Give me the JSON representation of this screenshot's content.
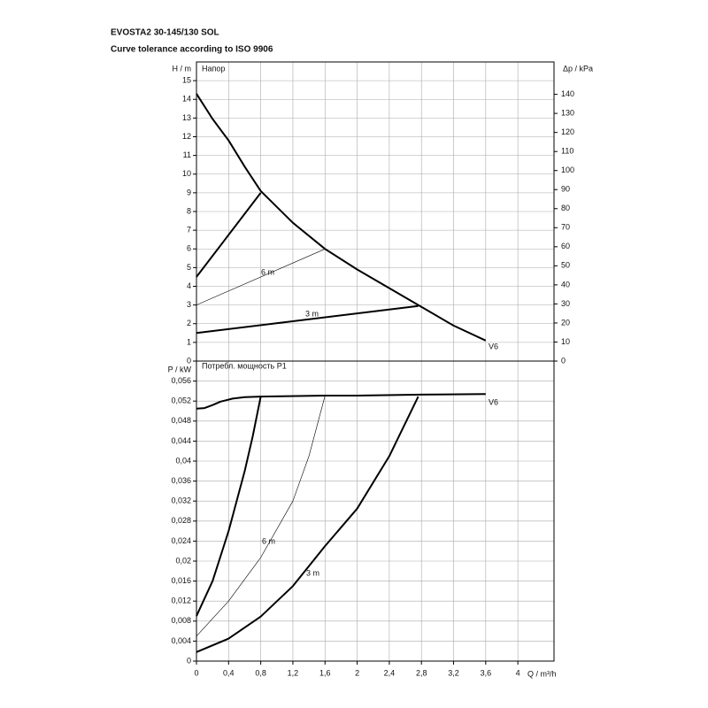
{
  "chart_data": [
    {
      "type": "line",
      "title": "EVOSTA2 30-145/130 SOL",
      "subtitle": "Curve tolerance according to ISO 9906",
      "panel_title": "Напор",
      "ylabel": "H / m",
      "y2label": "Δp / kPa",
      "xlim": [
        0,
        4.45
      ],
      "xticks": [
        0,
        0.4,
        0.8,
        1.2,
        1.6,
        2,
        2.4,
        2.8,
        3.2,
        3.6,
        4
      ],
      "ylim": [
        0,
        16
      ],
      "yticks": [
        0,
        1,
        2,
        3,
        4,
        5,
        6,
        7,
        8,
        9,
        10,
        11,
        12,
        13,
        14,
        15
      ],
      "y2lim": [
        0,
        157
      ],
      "y2ticks": [
        0,
        10,
        20,
        30,
        40,
        50,
        60,
        70,
        80,
        90,
        100,
        110,
        120,
        130,
        140
      ],
      "grid": true,
      "series": [
        {
          "name": "V6",
          "color": "#000000",
          "width": 2,
          "x": [
            0,
            0.2,
            0.4,
            0.6,
            0.8,
            1.2,
            1.6,
            2.0,
            2.4,
            2.8,
            3.2,
            3.6
          ],
          "values": [
            14.3,
            12.95,
            11.8,
            10.4,
            9.1,
            7.4,
            6.0,
            4.9,
            3.9,
            2.9,
            1.9,
            1.1
          ]
        },
        {
          "color": "#000000",
          "width": 2,
          "x": [
            0,
            0.8
          ],
          "values": [
            4.5,
            9.0
          ]
        },
        {
          "name": "6 m",
          "color": "#000000",
          "width": 0.6,
          "x": [
            0,
            1.6
          ],
          "values": [
            3.0,
            6.0
          ]
        },
        {
          "name": "3 m",
          "color": "#000000",
          "width": 2,
          "x": [
            0,
            2.76
          ],
          "values": [
            1.5,
            2.95
          ]
        }
      ]
    },
    {
      "type": "line",
      "panel_title": "Потребл. мощность P1",
      "ylabel": "P / kW",
      "xlabel": "Q / m³/h",
      "xlim": [
        0,
        4.45
      ],
      "xticks": [
        0,
        {
          "value": 0.4,
          "label": "0,4"
        },
        {
          "value": 0.8,
          "label": "0,8"
        },
        {
          "value": 1.2,
          "label": "1,2"
        },
        {
          "value": 1.6,
          "label": "1,6"
        },
        2,
        {
          "value": 2.4,
          "label": "2,4"
        },
        {
          "value": 2.8,
          "label": "2,8"
        },
        {
          "value": 3.2,
          "label": "3,2"
        },
        {
          "value": 3.6,
          "label": "3,6"
        },
        4
      ],
      "ylim": [
        0,
        0.06
      ],
      "yticks": [
        0,
        {
          "value": 0.004,
          "label": "0,004"
        },
        {
          "value": 0.008,
          "label": "0,008"
        },
        {
          "value": 0.012,
          "label": "0,012"
        },
        {
          "value": 0.016,
          "label": "0,016"
        },
        {
          "value": 0.02,
          "label": "0,02"
        },
        {
          "value": 0.024,
          "label": "0,024"
        },
        {
          "value": 0.028,
          "label": "0,028"
        },
        {
          "value": 0.032,
          "label": "0,032"
        },
        {
          "value": 0.036,
          "label": "0,036"
        },
        {
          "value": 0.04,
          "label": "0,04"
        },
        {
          "value": 0.044,
          "label": "0,044"
        },
        {
          "value": 0.048,
          "label": "0,048"
        },
        {
          "value": 0.052,
          "label": "0,052"
        },
        {
          "value": 0.056,
          "label": "0,056"
        }
      ],
      "grid": true,
      "series": [
        {
          "name": "V6",
          "color": "#000000",
          "width": 2,
          "x": [
            0,
            0.1,
            0.2,
            0.3,
            0.45,
            0.6,
            0.8,
            1.6,
            2.0,
            2.8,
            3.6
          ],
          "values": [
            0.0505,
            0.0506,
            0.0512,
            0.0519,
            0.0525,
            0.0528,
            0.0529,
            0.0531,
            0.0531,
            0.0533,
            0.0534
          ]
        },
        {
          "color": "#000000",
          "width": 2,
          "x": [
            0,
            0.2,
            0.4,
            0.6,
            0.7,
            0.8
          ],
          "values": [
            0.009,
            0.016,
            0.026,
            0.038,
            0.045,
            0.0529
          ]
        },
        {
          "name": "6 m",
          "color": "#000000",
          "width": 0.6,
          "x": [
            0,
            0.4,
            0.8,
            1.2,
            1.4,
            1.6
          ],
          "values": [
            0.005,
            0.012,
            0.0207,
            0.032,
            0.041,
            0.0531
          ]
        },
        {
          "name": "3 m",
          "color": "#000000",
          "width": 2,
          "x": [
            0,
            0.4,
            0.8,
            1.2,
            1.6,
            2.0,
            2.4,
            2.76
          ],
          "values": [
            0.0018,
            0.0045,
            0.0089,
            0.015,
            0.023,
            0.0305,
            0.041,
            0.0529
          ]
        }
      ]
    }
  ]
}
